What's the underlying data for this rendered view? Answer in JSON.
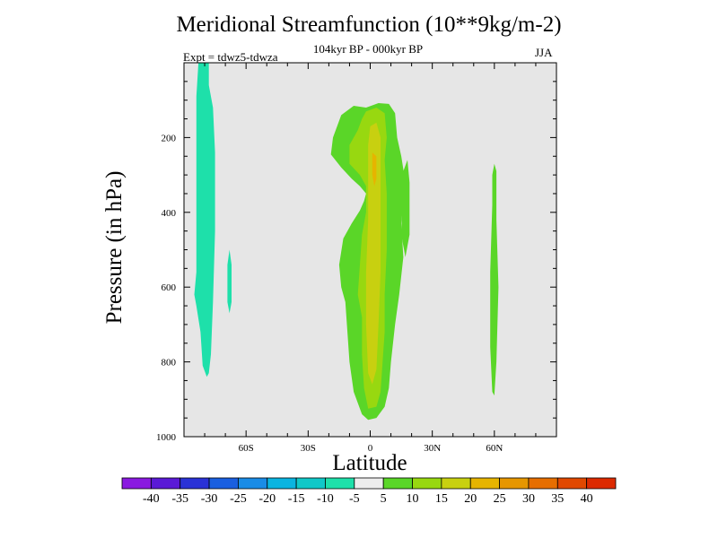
{
  "chart_data": {
    "type": "heatmap",
    "title": "Meridional Streamfunction (10**9kg/m-2)",
    "subtitle": "104kyr BP - 000kyr BP",
    "left_subtitle": "Expt = tdwz5-tdwza",
    "right_subtitle": "JJA",
    "xlabel": "Latitude",
    "ylabel": "Pressure (in hPa)",
    "xlim": [
      -90,
      90
    ],
    "ylim": [
      1000,
      0
    ],
    "x_ticks": [
      {
        "value": -60,
        "label": "60S"
      },
      {
        "value": -30,
        "label": "30S"
      },
      {
        "value": 0,
        "label": "0"
      },
      {
        "value": 30,
        "label": "30N"
      },
      {
        "value": 60,
        "label": "60N"
      }
    ],
    "y_ticks": [
      {
        "value": 200,
        "label": "200"
      },
      {
        "value": 400,
        "label": "400"
      },
      {
        "value": 600,
        "label": "600"
      },
      {
        "value": 800,
        "label": "800"
      },
      {
        "value": 1000,
        "label": "1000"
      }
    ],
    "background_color": "#e6e6e6",
    "levels": [
      -40,
      -35,
      -30,
      -25,
      -20,
      -15,
      -10,
      -5,
      5,
      10,
      15,
      20,
      25,
      30,
      35,
      40
    ],
    "level_labels": [
      "-40",
      "-35",
      "-30",
      "-25",
      "-20",
      "-15",
      "-10",
      "-5",
      "5",
      "10",
      "15",
      "20",
      "25",
      "30",
      "35",
      "40"
    ],
    "colors": [
      "#8a1ae0",
      "#5a1ad6",
      "#2a32d6",
      "#1a5fe0",
      "#1a8ce6",
      "#0ab4e0",
      "#10c8c8",
      "#1ee0aa",
      "#ededed",
      "#5ad628",
      "#98d810",
      "#c8d010",
      "#e6b400",
      "#e69600",
      "#e66e00",
      "#e04800",
      "#dc2a00"
    ],
    "regions": [
      {
        "name": "southern-negative-cell",
        "color_index": 7,
        "points": [
          [
            -83,
            0
          ],
          [
            -78,
            0
          ],
          [
            -78,
            60
          ],
          [
            -76,
            120
          ],
          [
            -75,
            240
          ],
          [
            -75,
            450
          ],
          [
            -76,
            640
          ],
          [
            -77,
            780
          ],
          [
            -78,
            830
          ],
          [
            -79,
            840
          ],
          [
            -81,
            810
          ],
          [
            -82,
            720
          ],
          [
            -84,
            650
          ],
          [
            -85,
            620
          ],
          [
            -84,
            560
          ],
          [
            -84,
            400
          ],
          [
            -84,
            250
          ],
          [
            -84,
            90
          ]
        ]
      },
      {
        "name": "southern-negative-patch",
        "color_index": 7,
        "points": [
          [
            -68,
            500
          ],
          [
            -67,
            540
          ],
          [
            -67,
            640
          ],
          [
            -68,
            670
          ],
          [
            -69,
            640
          ],
          [
            -69,
            540
          ]
        ]
      },
      {
        "name": "tropical-cell-outer",
        "color_index": 9,
        "points": [
          [
            -18,
            200
          ],
          [
            -14,
            140
          ],
          [
            -8,
            115
          ],
          [
            -2,
            120
          ],
          [
            4,
            108
          ],
          [
            9,
            110
          ],
          [
            12,
            135
          ],
          [
            13,
            200
          ],
          [
            15,
            250
          ],
          [
            17,
            320
          ],
          [
            15,
            430
          ],
          [
            16,
            520
          ],
          [
            14,
            620
          ],
          [
            12,
            700
          ],
          [
            10,
            800
          ],
          [
            9,
            870
          ],
          [
            7,
            920
          ],
          [
            3,
            950
          ],
          [
            -1,
            955
          ],
          [
            -4,
            940
          ],
          [
            -8,
            880
          ],
          [
            -10,
            800
          ],
          [
            -11,
            720
          ],
          [
            -12,
            640
          ],
          [
            -14,
            600
          ],
          [
            -15,
            540
          ],
          [
            -13,
            470
          ],
          [
            -9,
            430
          ],
          [
            -5,
            395
          ],
          [
            -3,
            370
          ],
          [
            -2,
            350
          ],
          [
            -5,
            330
          ],
          [
            -9,
            310
          ],
          [
            -14,
            280
          ],
          [
            -19,
            245
          ]
        ]
      },
      {
        "name": "tropical-cell-side",
        "color_index": 9,
        "points": [
          [
            16,
            290
          ],
          [
            18,
            260
          ],
          [
            19,
            320
          ],
          [
            19,
            460
          ],
          [
            17,
            520
          ],
          [
            15,
            460
          ]
        ]
      },
      {
        "name": "tropical-cell-mid",
        "color_index": 10,
        "points": [
          [
            -2,
            130
          ],
          [
            3,
            120
          ],
          [
            7,
            135
          ],
          [
            8,
            200
          ],
          [
            7,
            260
          ],
          [
            8,
            350
          ],
          [
            8,
            500
          ],
          [
            7,
            620
          ],
          [
            7,
            720
          ],
          [
            6,
            800
          ],
          [
            5,
            880
          ],
          [
            3,
            920
          ],
          [
            -1,
            925
          ],
          [
            -3,
            870
          ],
          [
            -4,
            780
          ],
          [
            -4,
            680
          ],
          [
            -6,
            620
          ],
          [
            -5,
            540
          ],
          [
            -4,
            460
          ],
          [
            -2,
            400
          ],
          [
            -2,
            330
          ],
          [
            -5,
            300
          ],
          [
            -10,
            270
          ],
          [
            -10,
            220
          ],
          [
            -6,
            180
          ],
          [
            -4,
            150
          ]
        ]
      },
      {
        "name": "tropical-cell-core",
        "color_index": 11,
        "points": [
          [
            0,
            170
          ],
          [
            3,
            160
          ],
          [
            5,
            200
          ],
          [
            5,
            300
          ],
          [
            5,
            420
          ],
          [
            5,
            560
          ],
          [
            4,
            700
          ],
          [
            3,
            820
          ],
          [
            1,
            860
          ],
          [
            -1,
            830
          ],
          [
            -2,
            700
          ],
          [
            -2,
            560
          ],
          [
            -1,
            420
          ],
          [
            -1,
            300
          ],
          [
            -1,
            220
          ]
        ]
      },
      {
        "name": "tropical-cell-peak",
        "color_index": 12,
        "points": [
          [
            1,
            240
          ],
          [
            3,
            250
          ],
          [
            3,
            310
          ],
          [
            2,
            330
          ],
          [
            1,
            300
          ]
        ]
      },
      {
        "name": "northern-positive-cell",
        "color_index": 9,
        "points": [
          [
            60,
            270
          ],
          [
            61,
            290
          ],
          [
            61,
            420
          ],
          [
            62,
            600
          ],
          [
            61,
            800
          ],
          [
            60,
            890
          ],
          [
            59,
            880
          ],
          [
            58,
            760
          ],
          [
            58,
            560
          ],
          [
            59,
            380
          ],
          [
            59,
            300
          ]
        ]
      }
    ]
  }
}
